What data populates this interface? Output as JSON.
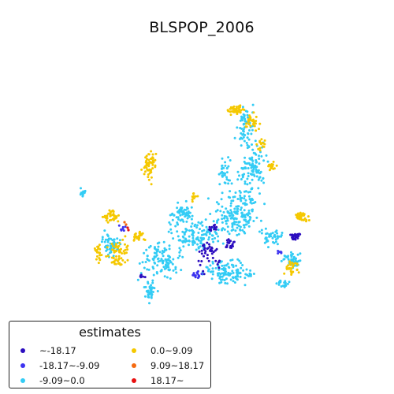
{
  "title": "BLSPOP_2006",
  "legend": {
    "title": "estimates",
    "entries": [
      {
        "label": "~-18.17",
        "color": "#2b0dbf"
      },
      {
        "label": "-18.17~-9.09",
        "color": "#3d33f0"
      },
      {
        "label": "-9.09~0.0",
        "color": "#33ccf5"
      },
      {
        "label": "0.0~9.09",
        "color": "#f5c800"
      },
      {
        "label": "9.09~18.17",
        "color": "#f56a10"
      },
      {
        "label": "18.17~",
        "color": "#e81010"
      }
    ]
  },
  "chart_data": {
    "type": "scatter",
    "title": "BLSPOP_2006",
    "legend_title": "estimates",
    "legend_position": "bottom-left",
    "classes": [
      "~-18.17",
      "-18.17~-9.09",
      "-9.09~0.0",
      "0.0~9.09",
      "9.09~18.17",
      "18.17~"
    ],
    "colors": [
      "#2b0dbf",
      "#3d33f0",
      "#33ccf5",
      "#f5c800",
      "#f56a10",
      "#e81010"
    ],
    "axes_visible": false
  }
}
